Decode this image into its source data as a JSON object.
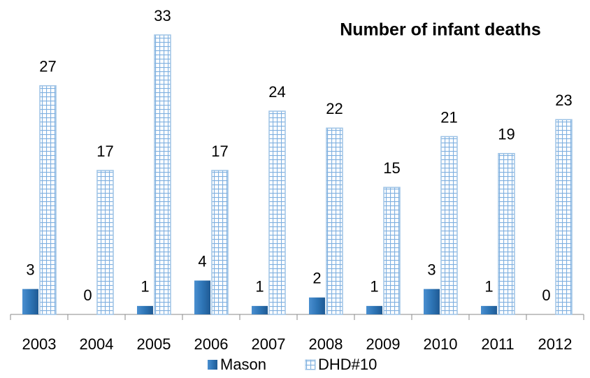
{
  "chart_data": {
    "type": "bar",
    "title": "Number of infant deaths",
    "categories": [
      "2003",
      "2004",
      "2005",
      "2006",
      "2007",
      "2008",
      "2009",
      "2010",
      "2011",
      "2012"
    ],
    "series": [
      {
        "name": "Mason",
        "color": "#2e75b6",
        "values": [
          3,
          0,
          1,
          4,
          1,
          2,
          1,
          3,
          1,
          0
        ]
      },
      {
        "name": "DHD#10",
        "color": "#9dc3e6",
        "values": [
          27,
          17,
          33,
          17,
          24,
          22,
          15,
          21,
          19,
          23
        ]
      }
    ]
  }
}
